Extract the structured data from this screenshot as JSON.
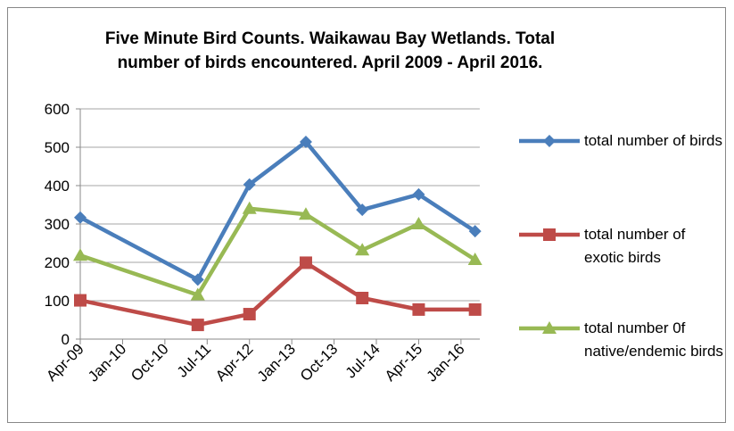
{
  "chart_data": {
    "type": "line",
    "title": "Five Minute Bird Counts. Waikawau Bay Wetlands. Total number of birds encountered.  April 2009 - April 2016.",
    "x": [
      "2009-04",
      "2011-05",
      "2012-04",
      "2013-04",
      "2014-04",
      "2015-04",
      "2016-04"
    ],
    "series": [
      {
        "name": "total number of birds",
        "color": "#4a7ebb",
        "marker": "diamond",
        "values": [
          317,
          155,
          403,
          514,
          337,
          377,
          281
        ]
      },
      {
        "name": "total number of exotic birds",
        "color": "#be4b48",
        "marker": "square",
        "values": [
          101,
          37,
          65,
          199,
          107,
          77,
          77
        ]
      },
      {
        "name": "total number 0f native/endemic birds",
        "color": "#98b954",
        "marker": "triangle",
        "values": [
          218,
          115,
          340,
          325,
          232,
          300,
          207
        ]
      }
    ],
    "xticks": [
      {
        "value": "2009-04",
        "label": "Apr-09"
      },
      {
        "value": "2010-01",
        "label": "Jan-10"
      },
      {
        "value": "2010-10",
        "label": "Oct-10"
      },
      {
        "value": "2011-07",
        "label": "Jul-11"
      },
      {
        "value": "2012-04",
        "label": "Apr-12"
      },
      {
        "value": "2013-01",
        "label": "Jan-13"
      },
      {
        "value": "2013-10",
        "label": "Oct-13"
      },
      {
        "value": "2014-07",
        "label": "Jul-14"
      },
      {
        "value": "2015-04",
        "label": "Apr-15"
      },
      {
        "value": "2016-01",
        "label": "Jan-16"
      }
    ],
    "xlim": [
      "2009-04",
      "2016-05"
    ],
    "ylim": [
      0,
      600
    ],
    "yticks": [
      0,
      100,
      200,
      300,
      400,
      500,
      600
    ],
    "grid": true,
    "legend": "right"
  }
}
